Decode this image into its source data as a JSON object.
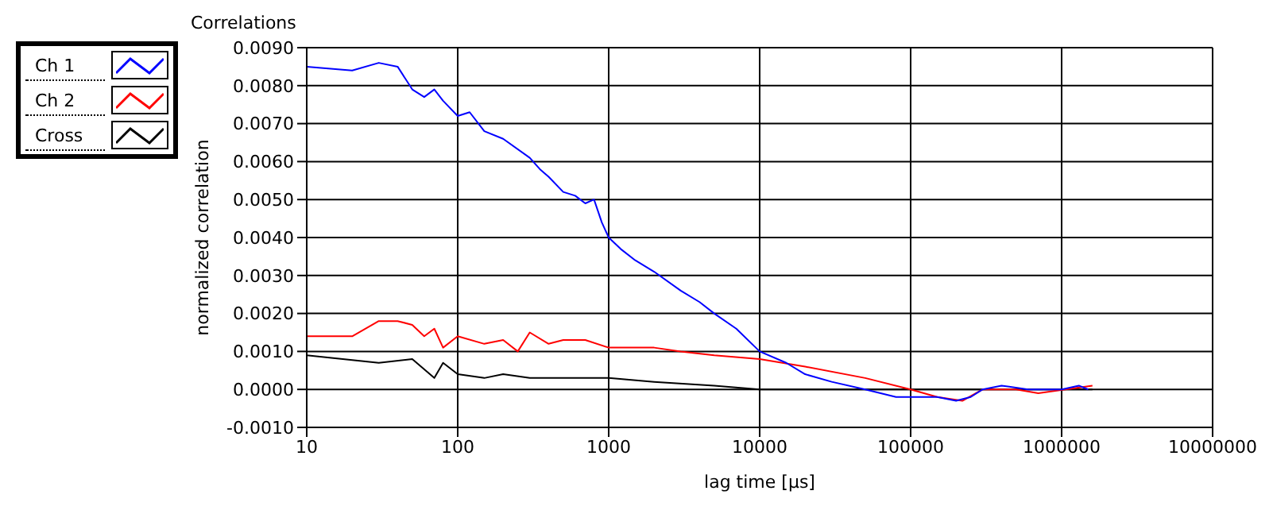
{
  "chart_data": {
    "type": "line",
    "title": "Correlations",
    "xlabel": "lag time [µs]",
    "ylabel": "normalized correlation",
    "log": "x",
    "grid": true,
    "legend": "top left",
    "marker": "none",
    "line_style": "solid",
    "xlim": [
      10,
      10000000
    ],
    "xticks": [
      10,
      100,
      1000,
      10000,
      100000,
      1000000,
      10000000
    ],
    "ylim": [
      -0.001,
      0.009
    ],
    "yticks": [
      {
        "value": -0.001,
        "label": "-0.0010"
      },
      {
        "value": 0,
        "label": "0.0000"
      },
      {
        "value": 0.001,
        "label": "0.0010"
      },
      {
        "value": 0.002,
        "label": "0.0020"
      },
      {
        "value": 0.003,
        "label": "0.0030"
      },
      {
        "value": 0.004,
        "label": "0.0040"
      },
      {
        "value": 0.005,
        "label": "0.0050"
      },
      {
        "value": 0.006,
        "label": "0.0060"
      },
      {
        "value": 0.007,
        "label": "0.0070"
      },
      {
        "value": 0.008,
        "label": "0.0080"
      },
      {
        "value": 0.009,
        "label": "0.0090"
      }
    ],
    "series": [
      {
        "name": "Ch 1",
        "color": "#0000ff",
        "x": [
          10,
          20,
          30,
          40,
          50,
          60,
          70,
          80,
          100,
          120,
          150,
          200,
          300,
          350,
          400,
          500,
          600,
          700,
          800,
          900,
          1000,
          1200,
          1500,
          2000,
          3000,
          4000,
          5000,
          7000,
          10000,
          15000,
          20000,
          30000,
          50000,
          80000,
          100000,
          150000,
          200000,
          250000,
          300000,
          400000,
          600000,
          1000000,
          1300000,
          1500000
        ],
        "values": [
          0.0085,
          0.0084,
          0.0086,
          0.0085,
          0.0079,
          0.0077,
          0.0079,
          0.0076,
          0.0072,
          0.0073,
          0.0068,
          0.0066,
          0.0061,
          0.0058,
          0.0056,
          0.0052,
          0.0051,
          0.0049,
          0.005,
          0.0044,
          0.004,
          0.0037,
          0.0034,
          0.0031,
          0.0026,
          0.0023,
          0.002,
          0.0016,
          0.001,
          0.0007,
          0.0004,
          0.0002,
          0,
          -0.0002,
          -0.0002,
          -0.0002,
          -0.0003,
          -0.0002,
          0,
          0.0001,
          0,
          0,
          0.0001,
          0
        ]
      },
      {
        "name": "Ch 2",
        "color": "#ff0000",
        "x": [
          10,
          20,
          30,
          40,
          50,
          60,
          70,
          80,
          100,
          150,
          200,
          250,
          300,
          400,
          500,
          700,
          1000,
          2000,
          3000,
          5000,
          10000,
          20000,
          50000,
          100000,
          150000,
          220000,
          300000,
          500000,
          700000,
          1600000
        ],
        "values": [
          0.0014,
          0.0014,
          0.0018,
          0.0018,
          0.0017,
          0.0014,
          0.0016,
          0.0011,
          0.0014,
          0.0012,
          0.0013,
          0.001,
          0.0015,
          0.0012,
          0.0013,
          0.0013,
          0.0011,
          0.0011,
          0.001,
          0.0009,
          0.0008,
          0.0006,
          0.0003,
          0,
          -0.0002,
          -0.0003,
          0,
          0,
          -0.0001,
          0.0001
        ]
      },
      {
        "name": "Cross",
        "color": "#000000",
        "x": [
          10,
          30,
          50,
          70,
          80,
          100,
          150,
          200,
          300,
          500,
          1000,
          2000,
          5000,
          10000,
          100000,
          1000000,
          1600000
        ],
        "values": [
          0.0009,
          0.0007,
          0.0008,
          0.0003,
          0.0007,
          0.0004,
          0.0003,
          0.0004,
          0.0003,
          0.0003,
          0.0003,
          0.0002,
          0.0001,
          0,
          0,
          0,
          0
        ]
      }
    ]
  }
}
